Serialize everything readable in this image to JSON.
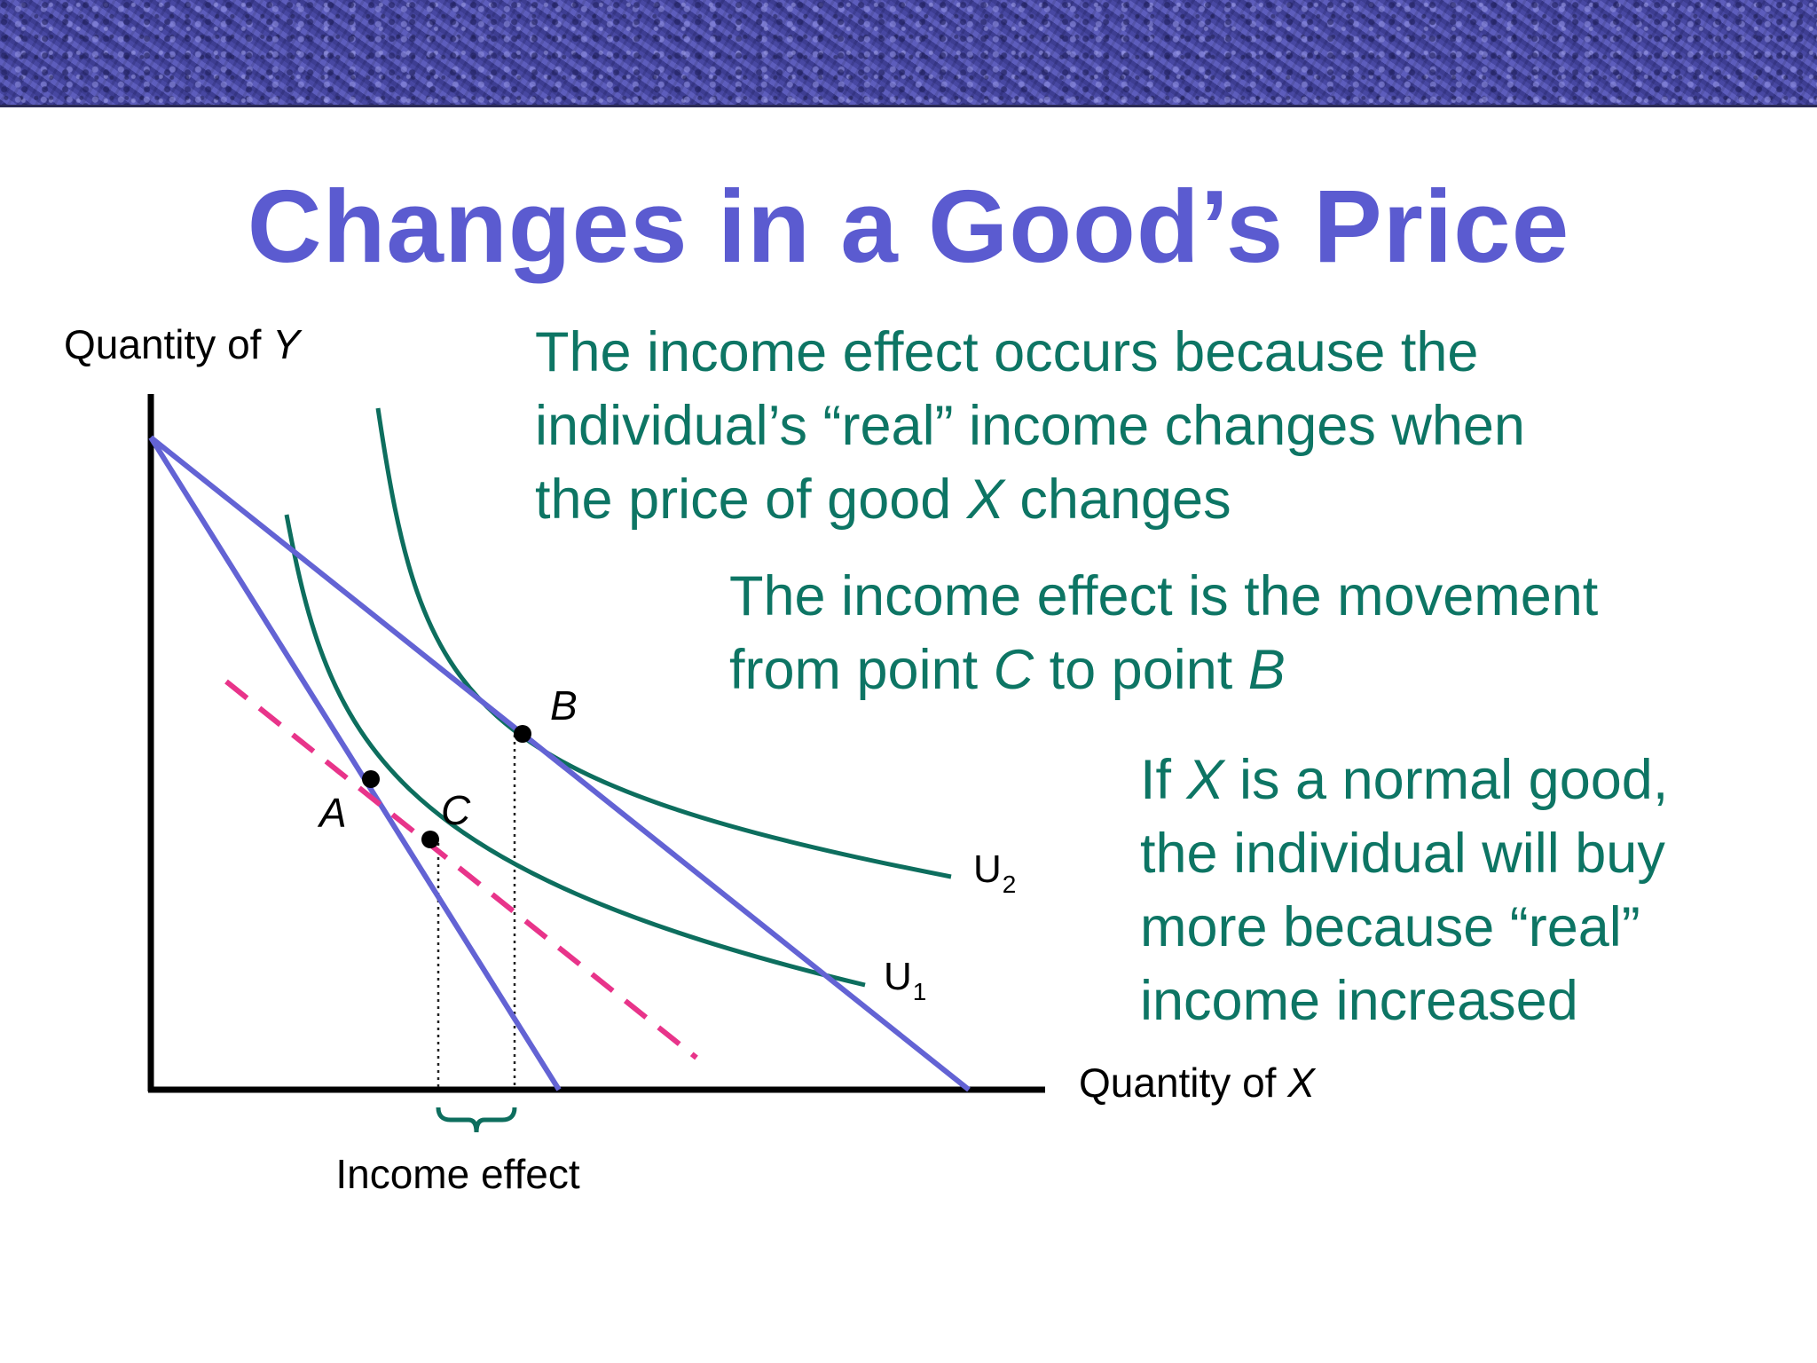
{
  "slide": {
    "title": "Changes in a Good’s Price"
  },
  "text_blocks": [
    {
      "id": "income-effect-cause",
      "lines": [
        [
          "The income effect occurs because the"
        ],
        [
          "individual’s “real” income changes when"
        ],
        [
          "the price of good ",
          {
            "i": "X"
          },
          " changes"
        ]
      ]
    },
    {
      "id": "income-effect-movement",
      "lines": [
        [
          "The income effect is the movement"
        ],
        [
          "from point ",
          {
            "i": "C"
          },
          " to point ",
          {
            "i": "B"
          }
        ]
      ]
    },
    {
      "id": "normal-good",
      "lines": [
        [
          "If ",
          {
            "i": "X"
          },
          " is a normal good,"
        ],
        [
          "the individual will buy"
        ],
        [
          "more because “real”"
        ],
        [
          "income increased"
        ]
      ]
    }
  ],
  "diagram": {
    "y_axis_label": {
      "prefix": "Quantity of ",
      "var": "Y"
    },
    "x_axis_label": {
      "prefix": "Quantity of ",
      "var": "X"
    },
    "curves": [
      {
        "id": "U1",
        "label": "U",
        "subscript": "1"
      },
      {
        "id": "U2",
        "label": "U",
        "subscript": "2"
      }
    ],
    "points": [
      "A",
      "B",
      "C"
    ],
    "bracket_label": "Income effect",
    "colors": {
      "indifference": "#0d6e5e",
      "budget": "#6363d4",
      "compensated_budget": "#e8348a",
      "text": "#0d7564",
      "title": "#5b5bd0"
    }
  }
}
